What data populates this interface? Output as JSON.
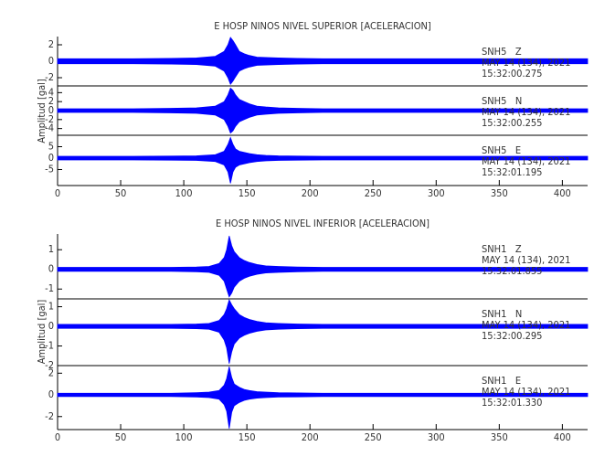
{
  "chart_data": [
    {
      "type": "seismogram",
      "title": "E HOSP NINOS NIVEL SUPERIOR [ACELERACION]",
      "ylabel": "Amplitud [gal]",
      "xlim": [
        0,
        420
      ],
      "xticks": [
        0,
        50,
        100,
        150,
        200,
        250,
        300,
        350,
        400
      ],
      "x": [
        0,
        30,
        60,
        90,
        110,
        125,
        132,
        135,
        137,
        139,
        141,
        144,
        148,
        152,
        158,
        165,
        175,
        190,
        210,
        240,
        280,
        320,
        360,
        420
      ],
      "traces": [
        {
          "station": "SNH5   Z",
          "date": "MAY 14 (134), 2021",
          "time": "15:32:00.275",
          "color": "#0000ff",
          "ylim": [
            -3,
            3
          ],
          "yticks": [
            -2,
            0,
            2
          ],
          "max": [
            0.3,
            0.3,
            0.3,
            0.35,
            0.4,
            0.6,
            1.2,
            2.0,
            2.9,
            2.5,
            2.0,
            1.2,
            0.9,
            0.7,
            0.5,
            0.45,
            0.4,
            0.35,
            0.3,
            0.3,
            0.3,
            0.3,
            0.3,
            0.3
          ],
          "min": [
            -0.3,
            -0.3,
            -0.3,
            -0.35,
            -0.4,
            -0.6,
            -1.2,
            -2.0,
            -2.8,
            -2.4,
            -1.9,
            -1.2,
            -0.9,
            -0.7,
            -0.5,
            -0.45,
            -0.4,
            -0.35,
            -0.3,
            -0.3,
            -0.3,
            -0.3,
            -0.3,
            -0.3
          ]
        },
        {
          "station": "SNH5   N",
          "date": "MAY 14 (134), 2021",
          "time": "15:32:00.255",
          "color": "#0000ff",
          "ylim": [
            -5.5,
            5.5
          ],
          "yticks": [
            -4,
            -2,
            0,
            2,
            4
          ],
          "max": [
            0.4,
            0.4,
            0.4,
            0.5,
            0.6,
            1.0,
            2.0,
            3.5,
            5.0,
            4.5,
            3.5,
            2.5,
            2.0,
            1.5,
            1.0,
            0.8,
            0.6,
            0.5,
            0.4,
            0.4,
            0.4,
            0.4,
            0.4,
            0.4
          ],
          "min": [
            -0.4,
            -0.4,
            -0.4,
            -0.5,
            -0.6,
            -1.0,
            -2.0,
            -3.5,
            -5.0,
            -4.5,
            -3.5,
            -2.5,
            -2.0,
            -1.5,
            -1.0,
            -0.8,
            -0.6,
            -0.5,
            -0.4,
            -0.4,
            -0.4,
            -0.4,
            -0.4,
            -0.4
          ]
        },
        {
          "station": "SNH5   E",
          "date": "MAY 14 (134), 2021",
          "time": "15:32:01.195",
          "color": "#0000ff",
          "ylim": [
            -12,
            10
          ],
          "yticks": [
            -5,
            0,
            5
          ],
          "max": [
            0.8,
            0.8,
            0.8,
            0.9,
            1.0,
            1.5,
            3.0,
            6.0,
            9.0,
            6.0,
            4.0,
            3.0,
            2.5,
            2.0,
            1.5,
            1.2,
            1.0,
            0.9,
            0.8,
            0.8,
            0.8,
            0.8,
            0.8,
            0.8
          ],
          "min": [
            -0.8,
            -0.8,
            -0.8,
            -0.9,
            -1.0,
            -1.5,
            -3.0,
            -6.0,
            -11.0,
            -6.0,
            -4.0,
            -3.0,
            -2.5,
            -2.0,
            -1.5,
            -1.2,
            -1.0,
            -0.9,
            -0.8,
            -0.8,
            -0.8,
            -0.8,
            -0.8,
            -0.8
          ]
        }
      ]
    },
    {
      "type": "seismogram",
      "title": "E HOSP NINOS NIVEL INFERIOR [ACELERACION]",
      "ylabel": "Amplitud [gal]",
      "xlim": [
        0,
        420
      ],
      "xticks": [
        0,
        50,
        100,
        150,
        200,
        250,
        300,
        350,
        400
      ],
      "x": [
        0,
        30,
        60,
        90,
        110,
        120,
        128,
        132,
        134,
        136,
        138,
        140,
        144,
        148,
        152,
        158,
        165,
        175,
        190,
        210,
        240,
        280,
        320,
        360,
        420
      ],
      "traces": [
        {
          "station": "SNH1   Z",
          "date": "MAY 14 (134), 2021",
          "time": "15:32:01.855",
          "color": "#0000ff",
          "ylim": [
            -1.5,
            1.8
          ],
          "yticks": [
            -1,
            0,
            1
          ],
          "max": [
            0.1,
            0.1,
            0.1,
            0.1,
            0.12,
            0.15,
            0.3,
            0.6,
            1.0,
            1.7,
            1.2,
            0.9,
            0.6,
            0.45,
            0.35,
            0.25,
            0.18,
            0.15,
            0.12,
            0.1,
            0.1,
            0.1,
            0.1,
            0.1,
            0.1
          ],
          "min": [
            -0.1,
            -0.1,
            -0.1,
            -0.1,
            -0.12,
            -0.15,
            -0.3,
            -0.6,
            -1.0,
            -1.4,
            -1.2,
            -0.9,
            -0.6,
            -0.45,
            -0.35,
            -0.25,
            -0.18,
            -0.15,
            -0.12,
            -0.1,
            -0.1,
            -0.1,
            -0.1,
            -0.1,
            -0.1
          ]
        },
        {
          "station": "SNH1   N",
          "date": "MAY 14 (134), 2021",
          "time": "15:32:00.295",
          "color": "#0000ff",
          "ylim": [
            -2,
            1.4
          ],
          "yticks": [
            -2,
            -1,
            0,
            1
          ],
          "max": [
            0.1,
            0.1,
            0.1,
            0.1,
            0.12,
            0.15,
            0.3,
            0.6,
            0.9,
            1.35,
            1.1,
            0.9,
            0.6,
            0.45,
            0.35,
            0.25,
            0.18,
            0.15,
            0.12,
            0.1,
            0.1,
            0.1,
            0.1,
            0.1,
            0.1
          ],
          "min": [
            -0.1,
            -0.1,
            -0.1,
            -0.1,
            -0.12,
            -0.15,
            -0.3,
            -0.7,
            -1.1,
            -1.9,
            -1.3,
            -0.9,
            -0.6,
            -0.45,
            -0.35,
            -0.25,
            -0.18,
            -0.15,
            -0.12,
            -0.1,
            -0.1,
            -0.1,
            -0.1,
            -0.1,
            -0.1
          ]
        },
        {
          "station": "SNH1   E",
          "date": "MAY 14 (134), 2021",
          "time": "15:32:01.330",
          "color": "#0000ff",
          "ylim": [
            -3.2,
            2.7
          ],
          "yticks": [
            -2,
            0,
            2
          ],
          "max": [
            0.15,
            0.15,
            0.15,
            0.15,
            0.2,
            0.25,
            0.4,
            0.9,
            1.5,
            2.6,
            1.6,
            1.0,
            0.7,
            0.5,
            0.4,
            0.3,
            0.25,
            0.2,
            0.18,
            0.15,
            0.15,
            0.15,
            0.15,
            0.15,
            0.15
          ],
          "min": [
            -0.15,
            -0.15,
            -0.15,
            -0.15,
            -0.2,
            -0.25,
            -0.4,
            -0.9,
            -1.5,
            -3.1,
            -1.6,
            -1.0,
            -0.7,
            -0.5,
            -0.4,
            -0.3,
            -0.25,
            -0.2,
            -0.18,
            -0.15,
            -0.15,
            -0.15,
            -0.15,
            -0.15,
            -0.15
          ]
        }
      ]
    }
  ]
}
